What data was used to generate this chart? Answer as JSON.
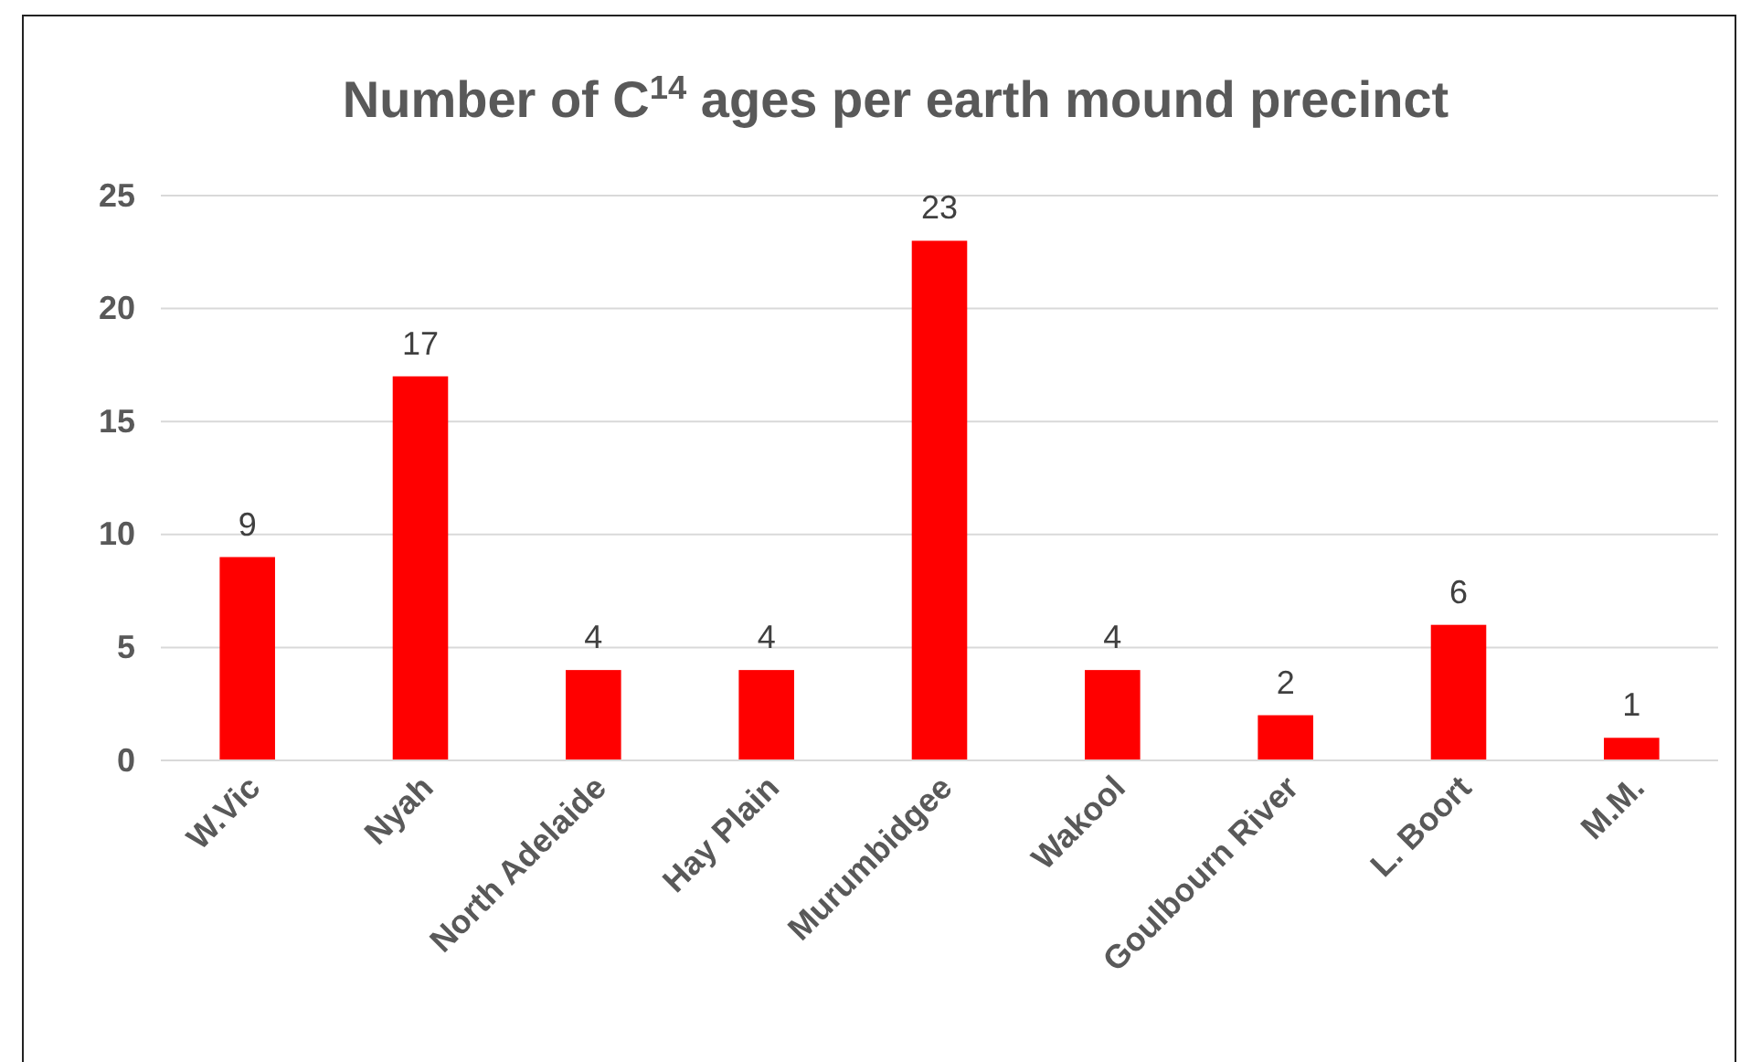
{
  "chart_data": {
    "type": "bar",
    "title": "Number of C$^{14}$ ages per earth mound precinct",
    "categories": [
      "W.Vic",
      "Nyah",
      "North Adelaide",
      "Hay Plain",
      "Murumbidgee",
      "Wakool",
      "Goulbourn River",
      "L. Boort",
      "M.M."
    ],
    "values": [
      9,
      17,
      4,
      4,
      23,
      4,
      2,
      6,
      1
    ],
    "color": "#ff0000",
    "ylim": [
      0,
      25
    ],
    "yticks": [
      0,
      5,
      10,
      15,
      20,
      25
    ],
    "grid": "y",
    "data_labels": true
  }
}
